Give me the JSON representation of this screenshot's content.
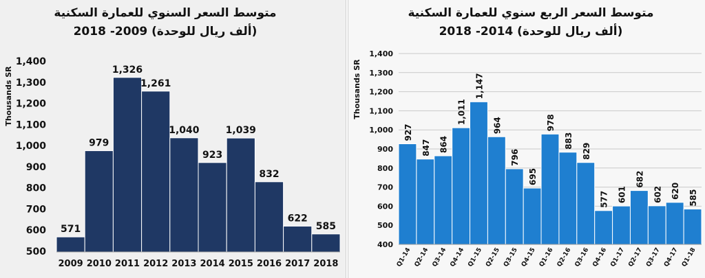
{
  "chart_data": [
    {
      "type": "bar",
      "title": "متوسط السعر السنوي للعمارة السكنية",
      "subtitle": "(ألف ريال للوحدة)  2009- 2018",
      "ylabel": "Thousands SR",
      "xlabel": "",
      "ylim": [
        500,
        1400
      ],
      "yticks": [
        500,
        600,
        700,
        800,
        900,
        1000,
        1100,
        1200,
        1300,
        1400
      ],
      "ytick_labels": [
        "500",
        "600",
        "700",
        "800",
        "900",
        "1,000",
        "1,100",
        "1,200",
        "1,300",
        "1,400"
      ],
      "categories": [
        "2009",
        "2010",
        "2011",
        "2012",
        "2013",
        "2014",
        "2015",
        "2016",
        "2017",
        "2018"
      ],
      "values": [
        571,
        979,
        1326,
        1261,
        1040,
        923,
        1039,
        832,
        622,
        585
      ],
      "labels": [
        "571",
        "979",
        "1,326",
        "1,261",
        "1,040",
        "923",
        "1,039",
        "832",
        "622",
        "585"
      ],
      "color": "#1f3864",
      "grid": false
    },
    {
      "type": "bar",
      "title": "متوسط السعر الربع سنوي للعمارة السكنية",
      "subtitle": "(ألف ريال للوحدة) 2014- 2018",
      "ylabel": "Thousands SR",
      "xlabel": "",
      "ylim": [
        400,
        1400
      ],
      "yticks": [
        400,
        500,
        600,
        700,
        800,
        900,
        1000,
        1100,
        1200,
        1300,
        1400
      ],
      "ytick_labels": [
        "400",
        "500",
        "600",
        "700",
        "800",
        "900",
        "1,000",
        "1,100",
        "1,200",
        "1,300",
        "1,400"
      ],
      "categories": [
        "Q1-14",
        "Q2-14",
        "Q3-14",
        "Q4-14",
        "Q1-15",
        "Q2-15",
        "Q3-15",
        "Q4-15",
        "Q1-16",
        "Q2-16",
        "Q3-16",
        "Q4-16",
        "Q1-17",
        "Q2-17",
        "Q3-17",
        "Q4-17",
        "Q1-18"
      ],
      "values": [
        927,
        847,
        864,
        1011,
        1147,
        964,
        796,
        695,
        978,
        883,
        829,
        577,
        601,
        682,
        602,
        620,
        585
      ],
      "labels": [
        "927",
        "847",
        "864",
        "1,011",
        "1,147",
        "964",
        "796",
        "695",
        "978",
        "883",
        "829",
        "577",
        "601",
        "682",
        "602",
        "620",
        "585"
      ],
      "color": "#1f7fd0",
      "grid": true
    }
  ]
}
